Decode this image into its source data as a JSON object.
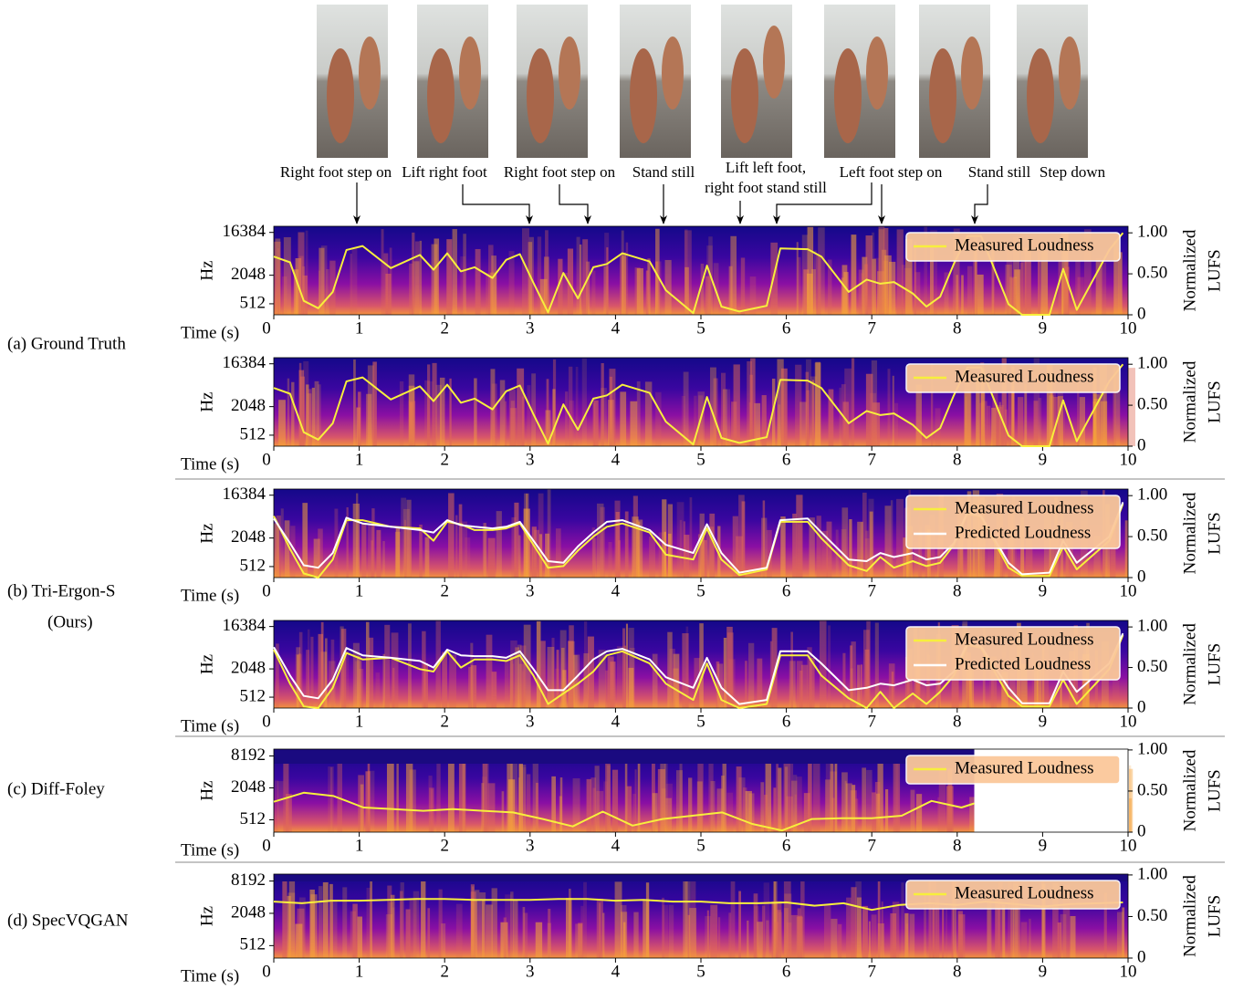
{
  "captions": [
    [
      "Right foot step on"
    ],
    [
      "Lift right foot"
    ],
    [
      "Right foot step on"
    ],
    [
      "Stand still"
    ],
    [
      "Lift left foot,",
      "right foot stand still"
    ],
    [
      "Left foot step on"
    ],
    [
      "Stand still"
    ],
    [
      "Step down"
    ]
  ],
  "row_labels": [
    [
      "(a) Ground Truth"
    ],
    [
      "(b) Tri-Ergon-S",
      "(Ours)"
    ],
    [
      "(c) Diff-Foley"
    ],
    [
      "(d) SpecVQGAN"
    ]
  ],
  "chart_data": [
    {
      "type": "line",
      "x_label": "Time (s)",
      "y_label": "Hz",
      "y2_label": [
        "Normalized",
        "LUFS"
      ],
      "legend": "upper right",
      "xlim": [
        0,
        10
      ],
      "xticks": [
        0,
        1,
        2,
        3,
        4,
        5,
        6,
        7,
        8,
        9,
        10
      ],
      "ylim": [
        300,
        22050
      ],
      "yscale": "log",
      "yticks": [
        512,
        2048,
        16384
      ],
      "y2lim": [
        0,
        1.08
      ],
      "y2ticks": [
        0,
        {
          "value": 0.5,
          "label": "0.50"
        },
        {
          "value": 1,
          "label": "1.00"
        }
      ],
      "x": [
        0,
        0.19,
        0.35,
        0.52,
        0.69,
        0.85,
        1.04,
        1.37,
        1.71,
        1.87,
        2.03,
        2.19,
        2.35,
        2.56,
        2.72,
        2.88,
        3.04,
        3.21,
        3.39,
        3.56,
        3.74,
        3.9,
        4.08,
        4.4,
        4.59,
        4.91,
        5.07,
        5.24,
        5.45,
        5.77,
        5.93,
        6.25,
        6.41,
        6.73,
        6.94,
        7.1,
        7.26,
        7.48,
        7.64,
        7.8,
        7.96,
        8.12,
        8.28,
        8.6,
        8.76,
        9.08,
        9.24,
        9.4,
        9.78,
        9.94
      ],
      "series": [
        {
          "name": "Measured Loudness",
          "color": "#f7ef3c",
          "axis": "y2",
          "values": [
            0.71,
            0.64,
            0.17,
            0.08,
            0.28,
            0.79,
            0.84,
            0.57,
            0.73,
            0.55,
            0.75,
            0.53,
            0.58,
            0.45,
            0.67,
            0.74,
            0.39,
            0.03,
            0.51,
            0.2,
            0.58,
            0.62,
            0.75,
            0.65,
            0.3,
            0.02,
            0.6,
            0.1,
            0.04,
            0.11,
            0.81,
            0.8,
            0.71,
            0.28,
            0.43,
            0.38,
            0.4,
            0.26,
            0.1,
            0.22,
            0.62,
            0.96,
            0.96,
            0.13,
            0.0,
            0.0,
            0.56,
            0.06,
            0.79,
            1.0
          ]
        }
      ]
    },
    {
      "type": "line",
      "x_label": "Time (s)",
      "y_label": "Hz",
      "y2_label": [
        "Normalized",
        "LUFS"
      ],
      "legend": "upper right",
      "xlim": [
        0,
        10
      ],
      "xticks": [
        0,
        1,
        2,
        3,
        4,
        5,
        6,
        7,
        8,
        9,
        10
      ],
      "ylim": [
        300,
        22050
      ],
      "yscale": "log",
      "yticks": [
        512,
        2048,
        16384
      ],
      "y2lim": [
        0,
        1.08
      ],
      "y2ticks": [
        0,
        {
          "value": 0.5,
          "label": "0.50"
        },
        {
          "value": 1,
          "label": "1.00"
        }
      ],
      "x": [
        0,
        0.19,
        0.35,
        0.52,
        0.69,
        0.85,
        1.04,
        1.37,
        1.71,
        1.87,
        2.03,
        2.19,
        2.35,
        2.56,
        2.72,
        2.88,
        3.04,
        3.21,
        3.39,
        3.56,
        3.74,
        3.9,
        4.08,
        4.4,
        4.59,
        4.91,
        5.07,
        5.24,
        5.45,
        5.77,
        5.93,
        6.25,
        6.41,
        6.73,
        6.94,
        7.1,
        7.26,
        7.48,
        7.64,
        7.8,
        7.96,
        8.12,
        8.28,
        8.6,
        8.76,
        9.08,
        9.24,
        9.4,
        9.78,
        9.94
      ],
      "series": [
        {
          "name": "Measured Loudness",
          "color": "#f7ef3c",
          "axis": "y2",
          "values": [
            0.71,
            0.64,
            0.17,
            0.08,
            0.28,
            0.79,
            0.84,
            0.57,
            0.73,
            0.55,
            0.75,
            0.53,
            0.58,
            0.45,
            0.67,
            0.74,
            0.39,
            0.03,
            0.51,
            0.2,
            0.58,
            0.62,
            0.75,
            0.65,
            0.3,
            0.02,
            0.6,
            0.1,
            0.04,
            0.11,
            0.81,
            0.8,
            0.71,
            0.28,
            0.43,
            0.38,
            0.4,
            0.26,
            0.1,
            0.22,
            0.62,
            0.96,
            0.96,
            0.13,
            0.0,
            0.0,
            0.56,
            0.06,
            0.79,
            1.0
          ]
        }
      ]
    },
    {
      "type": "line",
      "x_label": "Time (s)",
      "y_label": "Hz",
      "y2_label": [
        "Normalized",
        "LUFS"
      ],
      "legend": "upper right",
      "xlim": [
        0,
        10
      ],
      "xticks": [
        0,
        1,
        2,
        3,
        4,
        5,
        6,
        7,
        8,
        9,
        10
      ],
      "ylim": [
        300,
        22050
      ],
      "yscale": "log",
      "yticks": [
        512,
        2048,
        16384
      ],
      "y2lim": [
        0,
        1.08
      ],
      "y2ticks": [
        0,
        {
          "value": 0.5,
          "label": "0.50"
        },
        {
          "value": 1,
          "label": "1.00"
        }
      ],
      "x": [
        0,
        0.19,
        0.35,
        0.52,
        0.69,
        0.85,
        1.04,
        1.37,
        1.71,
        1.87,
        2.03,
        2.19,
        2.35,
        2.56,
        2.72,
        2.88,
        3.04,
        3.21,
        3.39,
        3.56,
        3.74,
        3.9,
        4.08,
        4.4,
        4.59,
        4.91,
        5.07,
        5.24,
        5.45,
        5.77,
        5.93,
        6.25,
        6.41,
        6.73,
        6.94,
        7.1,
        7.26,
        7.48,
        7.64,
        7.8,
        7.96,
        8.12,
        8.28,
        8.6,
        8.76,
        9.08,
        9.24,
        9.4,
        9.78,
        9.94
      ],
      "series": [
        {
          "name": "Measured Loudness",
          "color": "#f7ef3c",
          "axis": "y2",
          "values": [
            0.75,
            0.35,
            0.05,
            0.0,
            0.22,
            0.7,
            0.7,
            0.62,
            0.6,
            0.45,
            0.68,
            0.65,
            0.58,
            0.58,
            0.6,
            0.66,
            0.4,
            0.12,
            0.14,
            0.33,
            0.5,
            0.62,
            0.66,
            0.55,
            0.28,
            0.22,
            0.6,
            0.22,
            0.03,
            0.1,
            0.68,
            0.68,
            0.48,
            0.15,
            0.08,
            0.25,
            0.12,
            0.2,
            0.14,
            0.18,
            0.4,
            0.78,
            0.74,
            0.12,
            0.02,
            0.02,
            0.38,
            0.1,
            0.45,
            0.9
          ]
        },
        {
          "name": "Predicted Loudness",
          "color": "#ffffff",
          "axis": "y2",
          "values": [
            0.72,
            0.42,
            0.15,
            0.12,
            0.3,
            0.73,
            0.66,
            0.62,
            0.58,
            0.55,
            0.7,
            0.64,
            0.62,
            0.6,
            0.62,
            0.68,
            0.45,
            0.2,
            0.18,
            0.38,
            0.55,
            0.68,
            0.7,
            0.58,
            0.4,
            0.3,
            0.65,
            0.3,
            0.06,
            0.12,
            0.7,
            0.72,
            0.55,
            0.22,
            0.2,
            0.3,
            0.25,
            0.3,
            0.22,
            0.25,
            0.42,
            0.8,
            0.75,
            0.18,
            0.04,
            0.06,
            0.45,
            0.18,
            0.5,
            0.92
          ]
        }
      ]
    },
    {
      "type": "line",
      "x_label": "Time (s)",
      "y_label": "Hz",
      "y2_label": [
        "Normalized",
        "LUFS"
      ],
      "legend": "upper right",
      "xlim": [
        0,
        10
      ],
      "xticks": [
        0,
        1,
        2,
        3,
        4,
        5,
        6,
        7,
        8,
        9,
        10
      ],
      "ylim": [
        300,
        22050
      ],
      "yscale": "log",
      "yticks": [
        512,
        2048,
        16384
      ],
      "y2lim": [
        0,
        1.08
      ],
      "y2ticks": [
        0,
        {
          "value": 0.5,
          "label": "0.50"
        },
        {
          "value": 1,
          "label": "1.00"
        }
      ],
      "x": [
        0,
        0.19,
        0.35,
        0.52,
        0.69,
        0.85,
        1.04,
        1.37,
        1.71,
        1.87,
        2.03,
        2.19,
        2.35,
        2.56,
        2.72,
        2.88,
        3.04,
        3.21,
        3.39,
        3.56,
        3.74,
        3.9,
        4.08,
        4.4,
        4.59,
        4.91,
        5.07,
        5.24,
        5.45,
        5.77,
        5.93,
        6.25,
        6.41,
        6.73,
        6.94,
        7.1,
        7.26,
        7.48,
        7.64,
        7.8,
        7.96,
        8.12,
        8.28,
        8.6,
        8.76,
        9.08,
        9.24,
        9.4,
        9.78,
        9.94
      ],
      "series": [
        {
          "name": "Measured Loudness",
          "color": "#f7ef3c",
          "axis": "y2",
          "values": [
            0.72,
            0.3,
            0.02,
            0.0,
            0.25,
            0.68,
            0.6,
            0.62,
            0.48,
            0.45,
            0.7,
            0.5,
            0.6,
            0.6,
            0.58,
            0.65,
            0.4,
            0.05,
            0.18,
            0.3,
            0.45,
            0.65,
            0.7,
            0.55,
            0.3,
            0.1,
            0.55,
            0.1,
            0.0,
            0.05,
            0.65,
            0.65,
            0.4,
            0.12,
            0.0,
            0.2,
            0.0,
            0.18,
            0.05,
            0.2,
            0.4,
            0.78,
            0.74,
            0.15,
            0.02,
            0.02,
            0.35,
            0.05,
            0.48,
            0.9
          ]
        },
        {
          "name": "Predicted Loudness",
          "color": "#ffffff",
          "axis": "y2",
          "values": [
            0.75,
            0.4,
            0.15,
            0.12,
            0.35,
            0.74,
            0.65,
            0.62,
            0.58,
            0.5,
            0.72,
            0.65,
            0.64,
            0.64,
            0.62,
            0.7,
            0.48,
            0.22,
            0.22,
            0.4,
            0.6,
            0.7,
            0.73,
            0.6,
            0.38,
            0.25,
            0.62,
            0.25,
            0.05,
            0.1,
            0.7,
            0.7,
            0.55,
            0.22,
            0.25,
            0.3,
            0.28,
            0.35,
            0.28,
            0.3,
            0.45,
            0.8,
            0.76,
            0.25,
            0.06,
            0.06,
            0.45,
            0.2,
            0.55,
            0.92
          ]
        }
      ]
    },
    {
      "type": "line",
      "x_label": "Time (s)",
      "y_label": "Hz",
      "y2_label": [
        "Normalized",
        "LUFS"
      ],
      "legend": "upper right",
      "xlim": [
        0,
        10
      ],
      "xticks": [
        0,
        1,
        2,
        3,
        4,
        5,
        6,
        7,
        8,
        9,
        10
      ],
      "ylim": [
        300,
        11025
      ],
      "yscale": "log",
      "yticks": [
        512,
        2048,
        8192
      ],
      "y2lim": [
        0,
        1.01
      ],
      "y2ticks": [
        0,
        {
          "value": 0.5,
          "label": "0.50"
        },
        {
          "value": 1,
          "label": "1.00"
        }
      ],
      "x": [
        0,
        0.35,
        0.7,
        1.05,
        1.4,
        1.75,
        2.1,
        2.45,
        2.8,
        3.15,
        3.5,
        3.85,
        4.2,
        4.55,
        4.9,
        5.25,
        5.6,
        5.95,
        6.3,
        6.65,
        7.0,
        7.35,
        7.7,
        8.05,
        8.2
      ],
      "series": [
        {
          "name": "Measured Loudness",
          "color": "#f7ef3c",
          "axis": "y2",
          "values": [
            0.37,
            0.48,
            0.44,
            0.3,
            0.28,
            0.26,
            0.28,
            0.26,
            0.24,
            0.16,
            0.07,
            0.25,
            0.08,
            0.16,
            0.2,
            0.24,
            0.1,
            0.02,
            0.16,
            0.17,
            0.17,
            0.2,
            0.38,
            0.3,
            0.35
          ]
        }
      ]
    },
    {
      "type": "line",
      "x_label": "Time (s)",
      "y_label": "Hz",
      "y2_label": [
        "Normalized",
        "LUFS"
      ],
      "legend": "upper right",
      "xlim": [
        0,
        10
      ],
      "xticks": [
        0,
        1,
        2,
        3,
        4,
        5,
        6,
        7,
        8,
        9,
        10
      ],
      "ylim": [
        300,
        11025
      ],
      "yscale": "log",
      "yticks": [
        512,
        2048,
        8192
      ],
      "y2lim": [
        0,
        1.01
      ],
      "y2ticks": [
        0,
        {
          "value": 0.5,
          "label": "0.50"
        },
        {
          "value": 1,
          "label": "1.00"
        }
      ],
      "x": [
        0,
        0.33,
        0.67,
        1,
        1.33,
        1.67,
        2,
        2.33,
        2.67,
        3,
        3.33,
        3.67,
        4,
        4.33,
        4.67,
        5,
        5.33,
        5.67,
        6,
        6.33,
        6.67,
        7,
        7.33,
        7.67,
        8,
        8.33,
        8.67,
        9,
        9.33,
        9.67,
        9.94
      ],
      "series": [
        {
          "name": "Measured Loudness",
          "color": "#f7ef3c",
          "axis": "y2",
          "values": [
            0.68,
            0.66,
            0.69,
            0.69,
            0.7,
            0.71,
            0.71,
            0.7,
            0.7,
            0.7,
            0.71,
            0.71,
            0.69,
            0.7,
            0.68,
            0.68,
            0.66,
            0.66,
            0.67,
            0.63,
            0.66,
            0.58,
            0.64,
            0.66,
            0.64,
            0.68,
            0.65,
            0.62,
            0.65,
            0.66,
            0.67
          ]
        }
      ]
    }
  ]
}
